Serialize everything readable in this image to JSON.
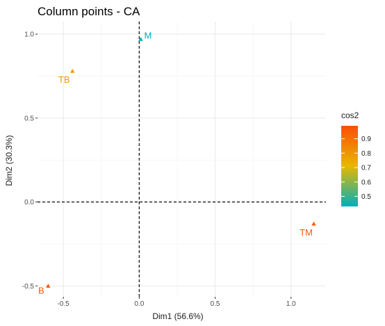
{
  "chart_data": {
    "type": "scatter",
    "title": "Column points - CA",
    "xlabel": "Dim1 (56.6%)",
    "ylabel": "Dim2 (30.3%)",
    "xlim": [
      -0.67,
      1.23
    ],
    "ylim": [
      -0.565,
      1.075
    ],
    "x_ticks": [
      -0.5,
      0.0,
      0.5,
      1.0
    ],
    "x_tick_labels": [
      "-0.5",
      "0.0",
      "0.5",
      "1.0"
    ],
    "y_ticks": [
      -0.5,
      0.0,
      0.5,
      1.0
    ],
    "y_tick_labels": [
      "-0.5",
      "0.0",
      "0.5",
      "1.0"
    ],
    "grid": true,
    "reference_lines": {
      "x": 0,
      "y": 0,
      "style": "dashed"
    },
    "points": [
      {
        "label": "M",
        "x": 0.01,
        "y": 0.97,
        "cos2": 0.43
      },
      {
        "label": "TB",
        "x": -0.44,
        "y": 0.78,
        "cos2": 0.79
      },
      {
        "label": "TM",
        "x": 1.15,
        "y": -0.13,
        "cos2": 0.96
      },
      {
        "label": "B",
        "x": -0.6,
        "y": -0.5,
        "cos2": 0.96
      }
    ],
    "legend": {
      "title": "cos2",
      "placement": "right",
      "range": [
        0.43,
        0.99
      ],
      "ticks": [
        0.5,
        0.6,
        0.7,
        0.8,
        0.9
      ],
      "tick_labels": [
        "0.5",
        "0.6",
        "0.7",
        "0.8",
        "0.9"
      ],
      "gradient_colors": [
        "#00AFBB",
        "#E7B800",
        "#FC4E07"
      ]
    }
  }
}
